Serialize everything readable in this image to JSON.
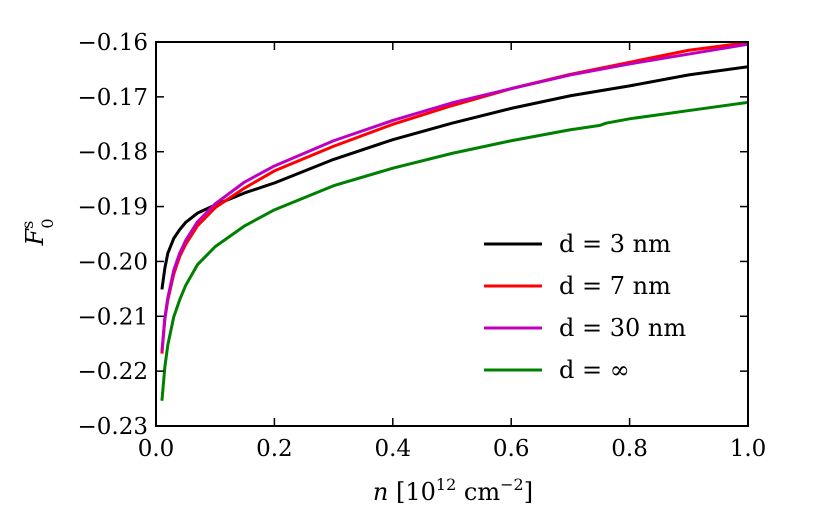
{
  "chart_data": {
    "type": "line",
    "title": "",
    "xlabel": "n [10^12 cm^-2]",
    "ylabel": "F_0^s",
    "xlim": [
      0.0,
      1.0
    ],
    "ylim": [
      -0.23,
      -0.16
    ],
    "xticks": [
      0.0,
      0.2,
      0.4,
      0.6,
      0.8,
      1.0
    ],
    "xtick_labels": [
      "0.0",
      "0.2",
      "0.4",
      "0.6",
      "0.8",
      "1.0"
    ],
    "yticks": [
      -0.23,
      -0.22,
      -0.21,
      -0.2,
      -0.19,
      -0.18,
      -0.17,
      -0.16
    ],
    "ytick_labels": [
      "−0.23",
      "−0.22",
      "−0.21",
      "−0.20",
      "−0.19",
      "−0.18",
      "−0.17",
      "−0.16"
    ],
    "grid": false,
    "legend_position": "lower-right",
    "series": [
      {
        "name": "d = 3 nm",
        "color": "#000000",
        "x": [
          0.01,
          0.015,
          0.02,
          0.03,
          0.04,
          0.05,
          0.07,
          0.1,
          0.15,
          0.2,
          0.3,
          0.4,
          0.5,
          0.6,
          0.7,
          0.8,
          0.9,
          1.0
        ],
        "y": [
          -0.2051,
          -0.2012,
          -0.1985,
          -0.1958,
          -0.1942,
          -0.1929,
          -0.1912,
          -0.1897,
          -0.1875,
          -0.1857,
          -0.1814,
          -0.1778,
          -0.1748,
          -0.1721,
          -0.1698,
          -0.168,
          -0.166,
          -0.1645
        ]
      },
      {
        "name": "d = 7 nm",
        "color": "#ff0000",
        "x": [
          0.01,
          0.015,
          0.02,
          0.03,
          0.04,
          0.05,
          0.07,
          0.1,
          0.15,
          0.2,
          0.3,
          0.4,
          0.5,
          0.6,
          0.7,
          0.8,
          0.9,
          1.0
        ],
        "y": [
          -0.2168,
          -0.2105,
          -0.207,
          -0.2023,
          -0.1991,
          -0.1969,
          -0.1935,
          -0.1902,
          -0.1866,
          -0.1835,
          -0.179,
          -0.175,
          -0.1716,
          -0.1685,
          -0.1659,
          -0.1637,
          -0.1615,
          -0.1601
        ]
      },
      {
        "name": "d = 30 nm",
        "color": "#bf00bf",
        "x": [
          0.01,
          0.015,
          0.02,
          0.03,
          0.04,
          0.05,
          0.07,
          0.1,
          0.15,
          0.2,
          0.3,
          0.4,
          0.5,
          0.6,
          0.7,
          0.8,
          0.9,
          1.0
        ],
        "y": [
          -0.2164,
          -0.2102,
          -0.2066,
          -0.2016,
          -0.1985,
          -0.1962,
          -0.1928,
          -0.1895,
          -0.1855,
          -0.1826,
          -0.178,
          -0.1743,
          -0.1711,
          -0.1685,
          -0.166,
          -0.164,
          -0.1622,
          -0.1604
        ]
      },
      {
        "name": "d = ∞",
        "color": "#008000",
        "x": [
          0.01,
          0.015,
          0.02,
          0.03,
          0.04,
          0.05,
          0.07,
          0.1,
          0.15,
          0.2,
          0.3,
          0.4,
          0.5,
          0.6,
          0.7,
          0.75,
          0.76,
          0.8,
          0.9,
          1.0
        ],
        "y": [
          -0.2254,
          -0.2192,
          -0.2152,
          -0.2101,
          -0.207,
          -0.2044,
          -0.2006,
          -0.1973,
          -0.1935,
          -0.1906,
          -0.1862,
          -0.183,
          -0.1803,
          -0.178,
          -0.176,
          -0.1752,
          -0.1748,
          -0.174,
          -0.1725,
          -0.171
        ]
      }
    ]
  }
}
